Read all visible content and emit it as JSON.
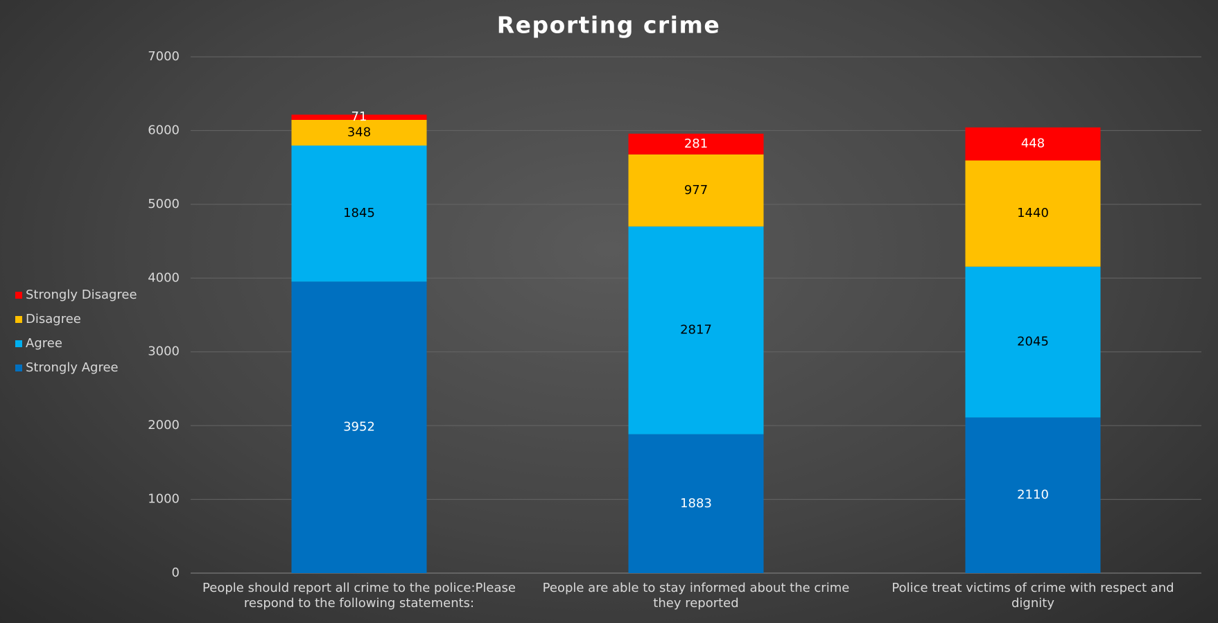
{
  "chart_data": {
    "type": "stacked_bar",
    "title": "Reporting crime",
    "categories": [
      "People should report all crime to the police:Please respond to the following statements:",
      "People are able to stay informed about the crime they reported",
      "Police treat victims of crime with respect and dignity"
    ],
    "series": [
      {
        "name": "Strongly Agree",
        "color": "#0070c0",
        "values": [
          3952,
          1883,
          2110
        ]
      },
      {
        "name": "Agree",
        "color": "#00b0f0",
        "values": [
          1845,
          2817,
          2045
        ]
      },
      {
        "name": "Disagree",
        "color": "#ffc000",
        "values": [
          348,
          977,
          1440
        ]
      },
      {
        "name": "Strongly Disagree",
        "color": "#ff0000",
        "values": [
          71,
          281,
          448
        ]
      }
    ],
    "ylim": [
      0,
      7000
    ],
    "yticks": [
      0,
      1000,
      2000,
      3000,
      4000,
      5000,
      6000,
      7000
    ],
    "grid": true,
    "legend": "left"
  }
}
